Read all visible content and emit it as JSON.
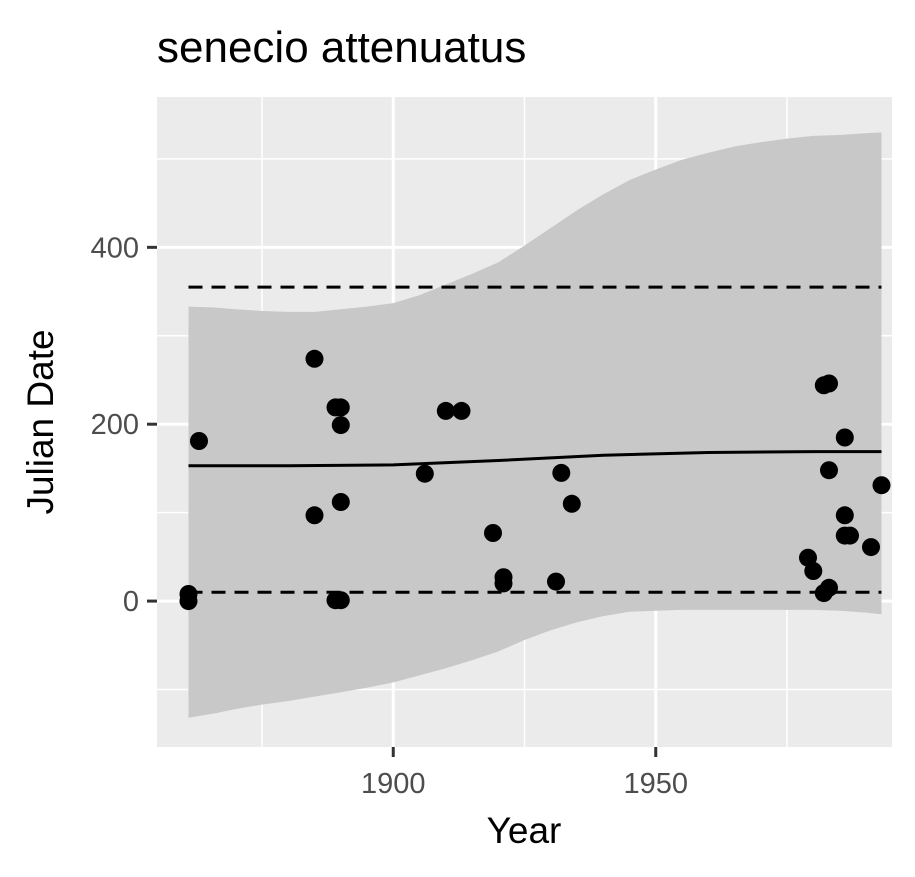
{
  "chart_data": {
    "type": "scatter",
    "title": "senecio attenuatus",
    "xlabel": "Year",
    "ylabel": "Julian Date",
    "xlim": [
      1855,
      1995
    ],
    "ylim": [
      -165,
      570
    ],
    "x_ticks": [
      1900,
      1950
    ],
    "y_ticks": [
      0,
      200,
      400
    ],
    "x_tick_labels": [
      "1900",
      "1950"
    ],
    "y_tick_labels": [
      "0",
      "200",
      "400"
    ],
    "grid": true,
    "legend": "none",
    "colors": {
      "panel_bg": "#ebebeb",
      "grid": "#ffffff",
      "ribbon": "#c8c8c8",
      "points": "#000000",
      "lines": "#000000"
    },
    "points": [
      {
        "x": 1861,
        "y": 8
      },
      {
        "x": 1861,
        "y": 0
      },
      {
        "x": 1863,
        "y": 181
      },
      {
        "x": 1885,
        "y": 274
      },
      {
        "x": 1885,
        "y": 97
      },
      {
        "x": 1889,
        "y": 219
      },
      {
        "x": 1890,
        "y": 219
      },
      {
        "x": 1890,
        "y": 199
      },
      {
        "x": 1890,
        "y": 112
      },
      {
        "x": 1889,
        "y": 1
      },
      {
        "x": 1890,
        "y": 1
      },
      {
        "x": 1906,
        "y": 144
      },
      {
        "x": 1910,
        "y": 215
      },
      {
        "x": 1913,
        "y": 215
      },
      {
        "x": 1919,
        "y": 77
      },
      {
        "x": 1921,
        "y": 27
      },
      {
        "x": 1921,
        "y": 20
      },
      {
        "x": 1931,
        "y": 22
      },
      {
        "x": 1932,
        "y": 145
      },
      {
        "x": 1934,
        "y": 110
      },
      {
        "x": 1979,
        "y": 49
      },
      {
        "x": 1980,
        "y": 34
      },
      {
        "x": 1982,
        "y": 244
      },
      {
        "x": 1983,
        "y": 246
      },
      {
        "x": 1982,
        "y": 9
      },
      {
        "x": 1983,
        "y": 15
      },
      {
        "x": 1983,
        "y": 148
      },
      {
        "x": 1986,
        "y": 185
      },
      {
        "x": 1986,
        "y": 97
      },
      {
        "x": 1986,
        "y": 74
      },
      {
        "x": 1987,
        "y": 74
      },
      {
        "x": 1991,
        "y": 61
      },
      {
        "x": 1993,
        "y": 131
      }
    ],
    "fit_line": {
      "x": [
        1861,
        1880,
        1900,
        1920,
        1940,
        1960,
        1980,
        1993
      ],
      "y": [
        153,
        153,
        154,
        159,
        165,
        168,
        169,
        169
      ]
    },
    "ribbon": {
      "x": [
        1861,
        1866,
        1870,
        1875,
        1880,
        1885,
        1890,
        1895,
        1900,
        1905,
        1910,
        1915,
        1920,
        1925,
        1930,
        1935,
        1940,
        1945,
        1950,
        1955,
        1960,
        1965,
        1970,
        1975,
        1980,
        1985,
        1990,
        1993
      ],
      "upper": [
        333,
        332,
        330,
        328,
        327,
        327,
        330,
        333,
        337,
        346,
        358,
        370,
        383,
        402,
        422,
        442,
        460,
        476,
        488,
        499,
        507,
        514,
        519,
        523,
        526,
        527,
        529,
        530
      ],
      "lower": [
        -132,
        -127,
        -122,
        -117,
        -113,
        -108,
        -103,
        -98,
        -92,
        -84,
        -76,
        -67,
        -57,
        -44,
        -33,
        -24,
        -17,
        -12,
        -11,
        -10,
        -10,
        -10,
        -10,
        -10,
        -10,
        -11,
        -13,
        -15
      ]
    },
    "quantile_bands": {
      "x": [
        1861,
        1993
      ],
      "upper": 355,
      "lower": 10
    }
  }
}
